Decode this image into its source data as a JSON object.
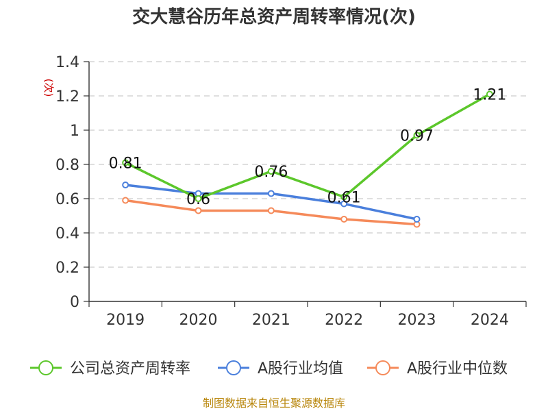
{
  "chart_data": {
    "type": "line",
    "title": "交大慧谷历年总资产周转率情况(次)",
    "ylabel": "(次)",
    "xlabel": "",
    "categories": [
      "2019",
      "2020",
      "2021",
      "2022",
      "2023",
      "2024"
    ],
    "y_ticks": [
      "0",
      "0.2",
      "0.4",
      "0.6",
      "0.8",
      "1",
      "1.2",
      "1.4"
    ],
    "ylim": [
      0,
      1.4
    ],
    "grid": true,
    "legend_position": "bottom",
    "series": [
      {
        "name": "公司总资产周转率",
        "color": "#5cc72b",
        "values": [
          0.81,
          0.6,
          0.76,
          0.61,
          0.97,
          1.21
        ],
        "labels": [
          "0.81",
          "0.6",
          "0.76",
          "0.61",
          "0.97",
          "1.21"
        ]
      },
      {
        "name": "A股行业均值",
        "color": "#4a7fdc",
        "values": [
          0.68,
          0.63,
          0.63,
          0.57,
          0.48,
          null
        ]
      },
      {
        "name": "A股行业中位数",
        "color": "#f58a5a",
        "values": [
          0.59,
          0.53,
          0.53,
          0.48,
          0.45,
          null
        ]
      }
    ]
  },
  "source": "制图数据来自恒生聚源数据库"
}
